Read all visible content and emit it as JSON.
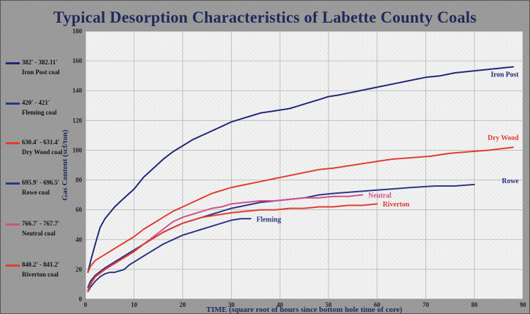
{
  "chart_data": {
    "type": "line",
    "title": "Typical Desorption Characteristics of Labette County Coals",
    "xlabel": "TIME (square root of hours since bottom hole time of core)",
    "ylabel": "Gas Content (scf/ton)",
    "xlim": [
      0,
      90
    ],
    "ylim": [
      0,
      180
    ],
    "xticks": [
      0,
      10,
      20,
      30,
      40,
      50,
      60,
      70,
      80,
      90
    ],
    "yticks": [
      0,
      20,
      40,
      60,
      80,
      100,
      120,
      140,
      160,
      180
    ],
    "grid": true,
    "legend_position": "left",
    "series": [
      {
        "name": "Iron Post",
        "legend_range": "382' - 382.11'",
        "legend_label": "Iron Post coal",
        "color": "#1f2577",
        "x": [
          0.5,
          1,
          2,
          3,
          4,
          5,
          6,
          7,
          8,
          10,
          12,
          14,
          16,
          18,
          20,
          22,
          24,
          26,
          28,
          30,
          32,
          34,
          36,
          38,
          40,
          42,
          44,
          46,
          48,
          50,
          52,
          55,
          58,
          61,
          64,
          67,
          70,
          73,
          76,
          79,
          82,
          85,
          88
        ],
        "y": [
          18,
          25,
          37,
          48,
          54,
          58,
          62,
          65,
          68,
          74,
          82,
          88,
          94,
          99,
          103,
          107,
          110,
          113,
          116,
          119,
          121,
          123,
          125,
          126,
          127,
          128,
          130,
          132,
          134,
          136,
          137,
          139,
          141,
          143,
          145,
          147,
          149,
          150,
          152,
          153,
          154,
          155,
          156
        ]
      },
      {
        "name": "Fleming",
        "legend_range": "420' - 421'",
        "legend_label": "Fleming coal",
        "color": "#2b3585",
        "x": [
          0.5,
          1,
          2,
          3,
          4,
          5,
          6,
          7,
          8,
          9,
          10,
          11,
          12,
          14,
          16,
          18,
          20,
          22,
          24,
          26,
          28,
          30,
          32,
          34
        ],
        "y": [
          5,
          8,
          12,
          15,
          17,
          18,
          18,
          19,
          20,
          23,
          25,
          27,
          29,
          33,
          37,
          40,
          43,
          45,
          47,
          49,
          51,
          53,
          54,
          54
        ]
      },
      {
        "name": "Dry Wood",
        "legend_range": "630.4' - 631.4'",
        "legend_label": "Dry Wood coal",
        "color": "#e03c2e",
        "x": [
          0.5,
          1,
          2,
          4,
          6,
          8,
          10,
          12,
          14,
          16,
          18,
          20,
          22,
          24,
          26,
          28,
          30,
          33,
          36,
          39,
          42,
          45,
          48,
          51,
          55,
          59,
          63,
          67,
          71,
          75,
          79,
          83,
          88
        ],
        "y": [
          18,
          22,
          26,
          30,
          34,
          38,
          42,
          47,
          51,
          55,
          59,
          62,
          65,
          68,
          71,
          73,
          75,
          77,
          79,
          81,
          83,
          85,
          87,
          88,
          90,
          92,
          94,
          95,
          96,
          98,
          99,
          100,
          102
        ]
      },
      {
        "name": "Rowe",
        "legend_range": "695.9' - 696.5'",
        "legend_label": "Rowe coal",
        "color": "#2b3585",
        "x": [
          0.5,
          1,
          2,
          4,
          6,
          8,
          10,
          12,
          14,
          16,
          18,
          20,
          22,
          24,
          26,
          28,
          30,
          33,
          36,
          39,
          42,
          45,
          48,
          51,
          55,
          59,
          63,
          67,
          72,
          76,
          80
        ],
        "y": [
          8,
          12,
          16,
          21,
          25,
          29,
          33,
          37,
          41,
          45,
          48,
          51,
          53,
          55,
          57,
          59,
          61,
          63,
          65,
          66,
          67,
          68,
          70,
          71,
          72,
          73,
          74,
          75,
          76,
          76,
          77
        ]
      },
      {
        "name": "Neutral",
        "legend_range": "766.7' - 767.7'",
        "legend_label": "Neutral coal",
        "color": "#d0508a",
        "x": [
          0.5,
          1,
          2,
          4,
          6,
          8,
          10,
          12,
          14,
          16,
          18,
          20,
          22,
          24,
          26,
          28,
          30,
          33,
          36,
          39,
          42,
          45,
          48,
          51,
          54,
          57
        ],
        "y": [
          5,
          10,
          15,
          20,
          24,
          28,
          32,
          37,
          42,
          47,
          52,
          55,
          57,
          59,
          61,
          62,
          64,
          65,
          66,
          66,
          67,
          68,
          68,
          69,
          69,
          70
        ]
      },
      {
        "name": "Riverton",
        "legend_range": "840.2' - 841.2'",
        "legend_label": "Riverton coal",
        "color": "#e03c2e",
        "x": [
          0.5,
          1,
          2,
          4,
          6,
          8,
          10,
          12,
          14,
          16,
          18,
          20,
          22,
          24,
          26,
          28,
          30,
          33,
          36,
          39,
          42,
          45,
          48,
          51,
          54,
          57,
          60
        ],
        "y": [
          6,
          10,
          15,
          20,
          24,
          28,
          32,
          37,
          41,
          45,
          48,
          51,
          53,
          55,
          56,
          57,
          58,
          59,
          60,
          60,
          61,
          61,
          62,
          62,
          63,
          63,
          64
        ]
      }
    ],
    "annotations": [
      {
        "text": "Iron Post",
        "series": 0
      },
      {
        "text": "Fleming",
        "series": 1
      },
      {
        "text": "Dry Wood",
        "series": 2
      },
      {
        "text": "Rowe",
        "series": 3
      },
      {
        "text": "Neutral",
        "series": 4
      },
      {
        "text": "Riverton",
        "series": 5
      }
    ]
  }
}
